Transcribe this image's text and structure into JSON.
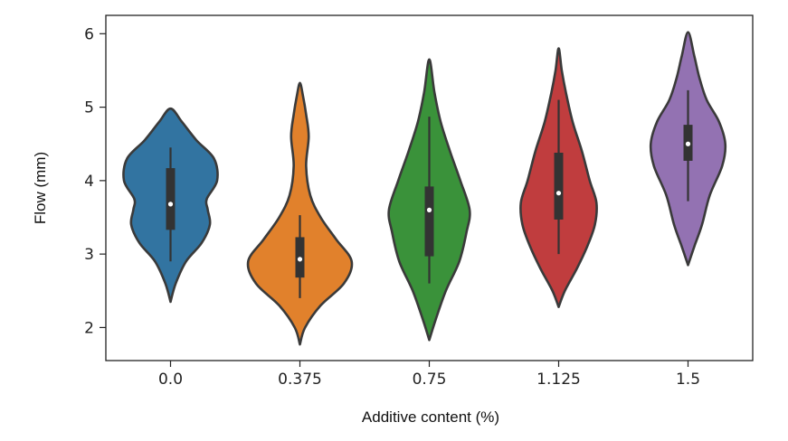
{
  "chart_data": {
    "type": "violin",
    "xlabel": "Additive content (%)",
    "ylabel": "Flow (mm)",
    "ylim": [
      1.55,
      6.25
    ],
    "yticks": [
      2,
      3,
      4,
      5,
      6
    ],
    "categories": [
      "0.0",
      "0.375",
      "0.75",
      "1.125",
      "1.5"
    ],
    "grid": false,
    "series": [
      {
        "category": "0.0",
        "color": "#3274a1",
        "min": 2.35,
        "max": 4.98,
        "whisker_low": 2.9,
        "whisker_high": 4.45,
        "q1": 3.33,
        "median": 3.68,
        "q3": 4.17,
        "profile": [
          [
            2.35,
            0.0
          ],
          [
            2.6,
            0.1
          ],
          [
            2.9,
            0.3
          ],
          [
            3.15,
            0.6
          ],
          [
            3.4,
            0.76
          ],
          [
            3.6,
            0.72
          ],
          [
            3.75,
            0.7
          ],
          [
            4.0,
            0.9
          ],
          [
            4.3,
            0.84
          ],
          [
            4.55,
            0.5
          ],
          [
            4.8,
            0.22
          ],
          [
            4.98,
            0.0
          ]
        ]
      },
      {
        "category": "0.375",
        "color": "#e1812c",
        "min": 1.77,
        "max": 5.33,
        "whisker_low": 2.4,
        "whisker_high": 3.53,
        "q1": 2.68,
        "median": 2.93,
        "q3": 3.23,
        "profile": [
          [
            1.77,
            0.0
          ],
          [
            2.0,
            0.1
          ],
          [
            2.3,
            0.4
          ],
          [
            2.6,
            0.85
          ],
          [
            2.9,
            1.0
          ],
          [
            3.2,
            0.7
          ],
          [
            3.5,
            0.4
          ],
          [
            3.8,
            0.2
          ],
          [
            4.2,
            0.12
          ],
          [
            4.6,
            0.17
          ],
          [
            4.9,
            0.12
          ],
          [
            5.15,
            0.06
          ],
          [
            5.33,
            0.0
          ]
        ]
      },
      {
        "category": "0.75",
        "color": "#3a923a",
        "min": 1.83,
        "max": 5.65,
        "whisker_low": 2.6,
        "whisker_high": 4.87,
        "q1": 2.97,
        "median": 3.6,
        "q3": 3.92,
        "profile": [
          [
            1.83,
            0.0
          ],
          [
            2.1,
            0.12
          ],
          [
            2.5,
            0.32
          ],
          [
            2.9,
            0.58
          ],
          [
            3.3,
            0.72
          ],
          [
            3.6,
            0.78
          ],
          [
            4.0,
            0.6
          ],
          [
            4.4,
            0.4
          ],
          [
            4.8,
            0.22
          ],
          [
            5.2,
            0.1
          ],
          [
            5.65,
            0.0
          ]
        ]
      },
      {
        "category": "1.125",
        "color": "#c03d3e",
        "min": 2.28,
        "max": 5.8,
        "whisker_low": 3.0,
        "whisker_high": 5.1,
        "q1": 3.47,
        "median": 3.83,
        "q3": 4.38,
        "profile": [
          [
            2.28,
            0.0
          ],
          [
            2.5,
            0.12
          ],
          [
            2.8,
            0.35
          ],
          [
            3.1,
            0.55
          ],
          [
            3.4,
            0.7
          ],
          [
            3.7,
            0.73
          ],
          [
            4.0,
            0.6
          ],
          [
            4.4,
            0.45
          ],
          [
            4.8,
            0.27
          ],
          [
            5.2,
            0.14
          ],
          [
            5.5,
            0.06
          ],
          [
            5.8,
            0.0
          ]
        ]
      },
      {
        "category": "1.5",
        "color": "#9372b2",
        "min": 2.85,
        "max": 6.02,
        "whisker_low": 3.72,
        "whisker_high": 5.23,
        "q1": 4.27,
        "median": 4.5,
        "q3": 4.76,
        "profile": [
          [
            2.85,
            0.0
          ],
          [
            3.1,
            0.12
          ],
          [
            3.4,
            0.27
          ],
          [
            3.8,
            0.42
          ],
          [
            4.2,
            0.66
          ],
          [
            4.5,
            0.72
          ],
          [
            4.8,
            0.6
          ],
          [
            5.1,
            0.36
          ],
          [
            5.4,
            0.22
          ],
          [
            5.7,
            0.12
          ],
          [
            6.02,
            0.0
          ]
        ]
      }
    ]
  }
}
